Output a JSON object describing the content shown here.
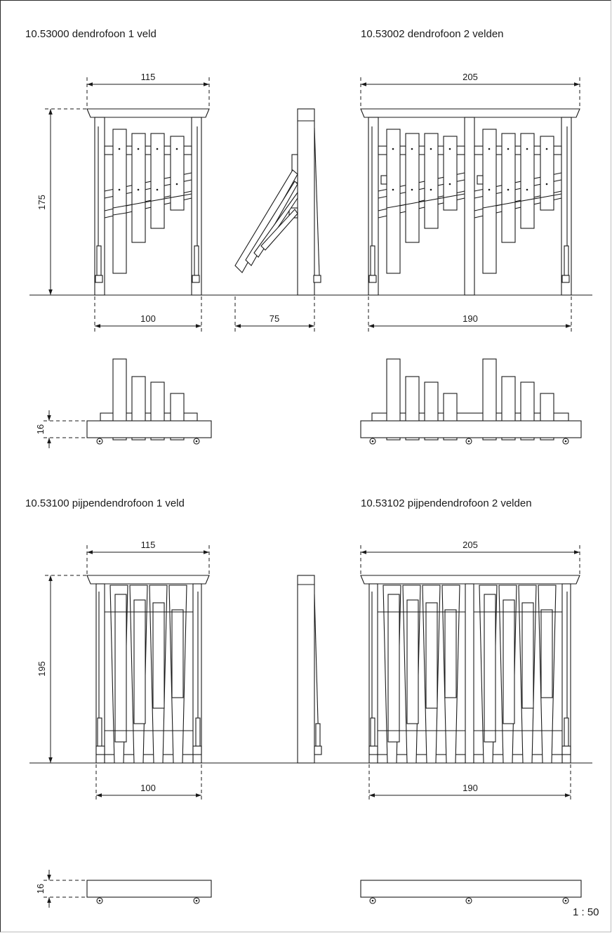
{
  "sections": {
    "dendro_1": {
      "title": "10.53000 dendrofoon 1 veld"
    },
    "dendro_2": {
      "title": "10.53002 dendrofoon 2 velden"
    },
    "pijp_1": {
      "title": "10.53100 pijpendendrofoon 1 veld"
    },
    "pijp_2": {
      "title": "10.53102 pijpendendrofoon 2 velden"
    }
  },
  "dimensions": {
    "top_width_1": "115",
    "top_width_2": "205",
    "height_dendro": "175",
    "height_pijp": "195",
    "base_width_1": "100",
    "base_width_2": "190",
    "depth": "75",
    "plan_height": "16"
  },
  "scale": "1 : 50"
}
